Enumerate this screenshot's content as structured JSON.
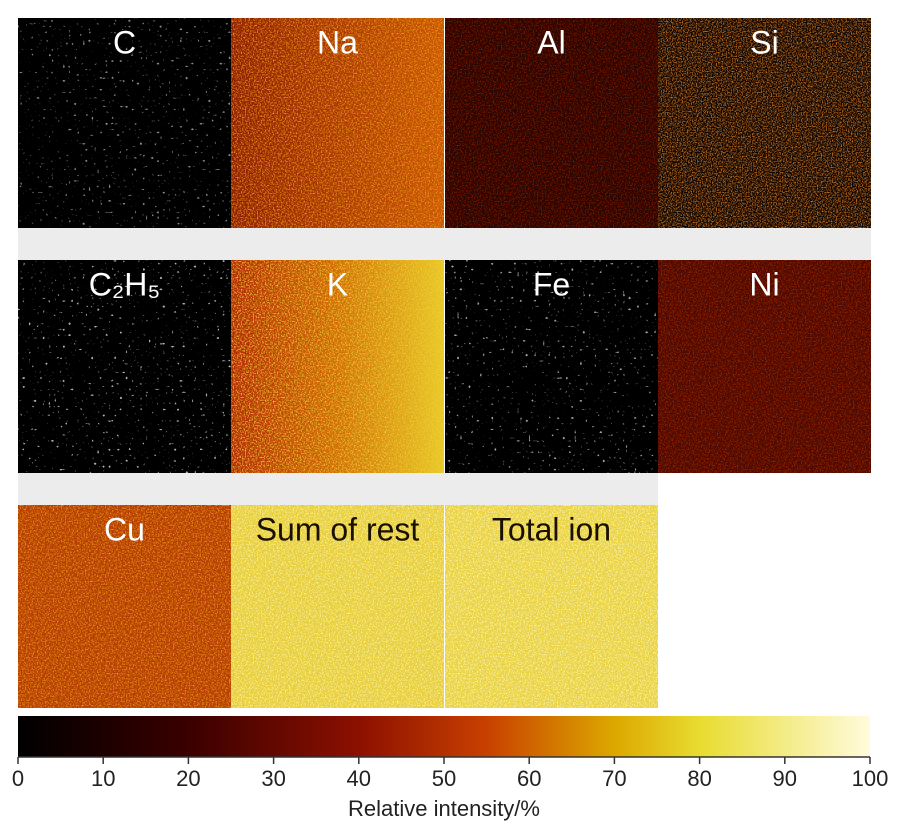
{
  "panels": [
    {
      "label": "C"
    },
    {
      "label": "Na"
    },
    {
      "label": "Al"
    },
    {
      "label": "Si"
    },
    {
      "label": "C₂H₅"
    },
    {
      "label": "K"
    },
    {
      "label": "Fe"
    },
    {
      "label": "Ni"
    },
    {
      "label": "Cu"
    },
    {
      "label": "Sum of rest"
    },
    {
      "label": "Total ion"
    }
  ],
  "colorbar": {
    "range": [
      0,
      100
    ],
    "ticks": [
      0,
      10,
      20,
      30,
      40,
      50,
      60,
      70,
      80,
      90,
      100
    ],
    "label": "Relative intensity/%"
  }
}
